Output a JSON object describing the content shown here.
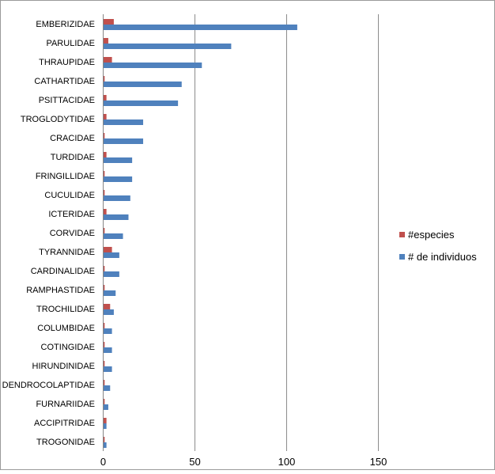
{
  "chart_data": {
    "type": "bar",
    "orientation": "horizontal",
    "categories": [
      "EMBERIZIDAE",
      "PARULIDAE",
      "THRAUPIDAE",
      "CATHARTIDAE",
      "PSITTACIDAE",
      "TROGLODYTIDAE",
      "CRACIDAE",
      "TURDIDAE",
      "FRINGILLIDAE",
      "CUCULIDAE",
      "ICTERIDAE",
      "CORVIDAE",
      "TYRANNIDAE",
      "CARDINALIDAE",
      "RAMPHASTIDAE",
      "TROCHILIDAE",
      "COLUMBIDAE",
      "COTINGIDAE",
      "HIRUNDINIDAE",
      "DENDROCOLAPTIDAE",
      "FURNARIIDAE",
      "ACCIPITRIDAE",
      "TROGONIDAE"
    ],
    "series": [
      {
        "name": "#especies",
        "color": "#c0504d",
        "values": [
          6,
          3,
          5,
          1,
          2,
          2,
          1,
          2,
          1,
          1,
          2,
          1,
          5,
          1,
          1,
          4,
          1,
          1,
          1,
          1,
          1,
          2,
          1
        ]
      },
      {
        "name": "# de individuos",
        "color": "#4f81bd",
        "values": [
          106,
          70,
          54,
          43,
          41,
          22,
          22,
          16,
          16,
          15,
          14,
          11,
          9,
          9,
          7,
          6,
          5,
          5,
          5,
          4,
          3,
          2,
          2
        ]
      }
    ],
    "xlim": [
      0,
      150
    ],
    "xticks": [
      0,
      50,
      100,
      150
    ],
    "xtick_labels": [
      "0",
      "50",
      "100",
      "150"
    ],
    "grid": true,
    "legend_position": "right",
    "title": "",
    "xlabel": "",
    "ylabel": ""
  }
}
